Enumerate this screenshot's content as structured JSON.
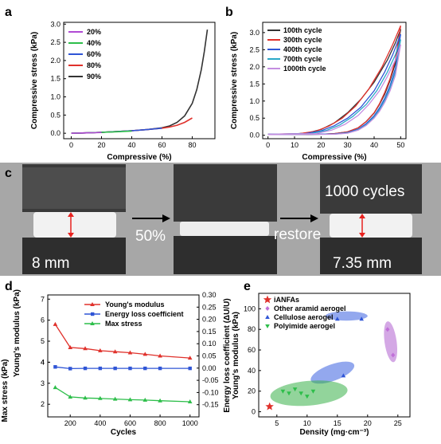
{
  "panel_labels": {
    "a": "a",
    "b": "b",
    "c": "c",
    "d": "d",
    "e": "e"
  },
  "colors": {
    "purple": "#b04bd4",
    "green": "#2dbe4a",
    "blue": "#2f55d6",
    "red": "#e0312b",
    "black": "#333333",
    "cyan": "#2aa8c8",
    "photo_bg": "#a9a9a9",
    "arrow_red": "#e8221f"
  },
  "chart_data": [
    {
      "id": "a",
      "type": "line",
      "xlabel": "Compressive (%)",
      "ylabel": "Compressive stress (kPa)",
      "xlim": [
        -5,
        95
      ],
      "ylim": [
        -0.15,
        3.05
      ],
      "xticks": [
        0,
        20,
        40,
        60,
        80
      ],
      "yticks": [
        0.0,
        0.5,
        1.0,
        1.5,
        2.0,
        2.5,
        3.0
      ],
      "legend_position": "top-left",
      "series": [
        {
          "name": "20%",
          "color": "#b04bd4",
          "x": [
            0,
            5,
            10,
            15,
            20
          ],
          "y": [
            0,
            0.005,
            0.01,
            0.015,
            0.02
          ]
        },
        {
          "name": "40%",
          "color": "#2dbe4a",
          "x": [
            0,
            10,
            20,
            30,
            40
          ],
          "y": [
            0,
            0.01,
            0.025,
            0.04,
            0.06
          ]
        },
        {
          "name": "60%",
          "color": "#2f55d6",
          "x": [
            0,
            10,
            20,
            30,
            40,
            50,
            60
          ],
          "y": [
            0,
            0.01,
            0.025,
            0.045,
            0.07,
            0.1,
            0.14
          ]
        },
        {
          "name": "80%",
          "color": "#e0312b",
          "x": [
            0,
            10,
            20,
            30,
            40,
            50,
            60,
            65,
            70,
            75,
            80
          ],
          "y": [
            0,
            0.01,
            0.025,
            0.045,
            0.07,
            0.1,
            0.14,
            0.17,
            0.22,
            0.3,
            0.42
          ]
        },
        {
          "name": "90%",
          "color": "#333333",
          "x": [
            0,
            10,
            20,
            30,
            40,
            50,
            60,
            65,
            70,
            75,
            80,
            83,
            86,
            88,
            90
          ],
          "y": [
            0,
            0.01,
            0.025,
            0.045,
            0.07,
            0.1,
            0.15,
            0.2,
            0.3,
            0.48,
            0.82,
            1.2,
            1.75,
            2.25,
            2.85
          ]
        }
      ]
    },
    {
      "id": "b",
      "type": "line",
      "xlabel": "Compressive (%)",
      "ylabel": "Compressive stress (kPa)",
      "xlim": [
        -2,
        52
      ],
      "ylim": [
        -0.1,
        3.3
      ],
      "xticks": [
        0,
        10,
        20,
        30,
        40,
        50
      ],
      "yticks": [
        0.0,
        0.5,
        1.0,
        1.5,
        2.0,
        2.5,
        3.0
      ],
      "legend_position": "top-left",
      "series": [
        {
          "name": "100th cycle",
          "color": "#333333",
          "load": {
            "x": [
              0,
              10,
              15,
              20,
              25,
              30,
              35,
              40,
              45,
              48,
              50
            ],
            "y": [
              0.03,
              0.04,
              0.07,
              0.17,
              0.36,
              0.66,
              1.05,
              1.55,
              2.2,
              2.7,
              3.1
            ]
          },
          "unload": {
            "x": [
              50,
              48,
              46,
              44,
              42,
              40,
              37,
              34,
              30,
              25,
              20,
              15,
              0
            ],
            "y": [
              3.1,
              2.1,
              1.6,
              1.2,
              0.9,
              0.65,
              0.4,
              0.22,
              0.1,
              0.05,
              0.03,
              0.02,
              0.02
            ]
          }
        },
        {
          "name": "300th cycle",
          "color": "#e0312b",
          "load": {
            "x": [
              0,
              12,
              18,
              23,
              28,
              33,
              38,
              43,
              47,
              50
            ],
            "y": [
              0.03,
              0.05,
              0.12,
              0.27,
              0.5,
              0.85,
              1.35,
              2.0,
              2.65,
              3.2
            ]
          },
          "unload": {
            "x": [
              50,
              48,
              46,
              44,
              42,
              40,
              37,
              34,
              30,
              25,
              20,
              0
            ],
            "y": [
              3.2,
              2.2,
              1.65,
              1.25,
              0.92,
              0.66,
              0.4,
              0.22,
              0.1,
              0.05,
              0.03,
              0.02
            ]
          }
        },
        {
          "name": "400th cycle",
          "color": "#2f55d6",
          "load": {
            "x": [
              0,
              14,
              20,
              25,
              30,
              35,
              40,
              44,
              47,
              50
            ],
            "y": [
              0.03,
              0.05,
              0.13,
              0.28,
              0.5,
              0.82,
              1.3,
              1.85,
              2.35,
              2.95
            ]
          },
          "unload": {
            "x": [
              50,
              48,
              46,
              44,
              42,
              40,
              37,
              34,
              30,
              25,
              0
            ],
            "y": [
              2.95,
              1.95,
              1.45,
              1.08,
              0.8,
              0.57,
              0.34,
              0.18,
              0.08,
              0.04,
              0.02
            ]
          }
        },
        {
          "name": "700th cycle",
          "color": "#2aa8c8",
          "load": {
            "x": [
              0,
              16,
              22,
              27,
              32,
              37,
              41,
              45,
              48,
              50
            ],
            "y": [
              0.03,
              0.05,
              0.14,
              0.3,
              0.55,
              0.9,
              1.3,
              1.85,
              2.35,
              2.8
            ]
          },
          "unload": {
            "x": [
              50,
              48,
              46,
              44,
              42,
              40,
              37,
              34,
              30,
              25,
              0
            ],
            "y": [
              2.8,
              1.85,
              1.38,
              1.02,
              0.75,
              0.53,
              0.31,
              0.16,
              0.07,
              0.03,
              0.02
            ]
          }
        },
        {
          "name": "1000th cycle",
          "color": "#c48de0",
          "load": {
            "x": [
              0,
              18,
              24,
              29,
              34,
              38,
              42,
              45,
              48,
              50
            ],
            "y": [
              0.03,
              0.05,
              0.15,
              0.32,
              0.58,
              0.9,
              1.3,
              1.72,
              2.2,
              2.65
            ]
          },
          "unload": {
            "x": [
              50,
              48,
              46,
              44,
              42,
              40,
              37,
              34,
              30,
              25,
              0
            ],
            "y": [
              2.65,
              1.75,
              1.3,
              0.96,
              0.7,
              0.5,
              0.29,
              0.15,
              0.06,
              0.03,
              0.02
            ]
          }
        }
      ]
    },
    {
      "id": "d",
      "type": "line",
      "xlabel": "Cycles",
      "ylabel_left_top": "Young's modulus (kPa)",
      "ylabel_left_bottom": "Max stress (kPa)",
      "ylabel_right": "Energy loss coefficient (ΔU/U)",
      "xlim": [
        50,
        1060
      ],
      "ylim_left": [
        1.4,
        7.2
      ],
      "ylim_right": [
        -0.2,
        0.3
      ],
      "xticks": [
        200,
        400,
        600,
        800,
        1000
      ],
      "yticks_left_top": [
        4,
        5,
        6,
        7
      ],
      "yticks_left_bottom": [
        2,
        3,
        4
      ],
      "yticks_right": [
        -0.15,
        -0.1,
        -0.05,
        0.0,
        0.05,
        0.1,
        0.15,
        0.2,
        0.25,
        0.3
      ],
      "legend_position": "top-center",
      "series": [
        {
          "name": "Young's modulus",
          "axis": "left",
          "color": "#e0312b",
          "marker": "triangle",
          "x": [
            100,
            200,
            300,
            400,
            500,
            600,
            700,
            800,
            1000
          ],
          "y": [
            5.8,
            4.7,
            4.65,
            4.55,
            4.5,
            4.45,
            4.38,
            4.3,
            4.2
          ]
        },
        {
          "name": "Energy loss coefficient",
          "axis": "right",
          "color": "#2f55d6",
          "marker": "square",
          "x": [
            100,
            200,
            300,
            400,
            500,
            600,
            700,
            800,
            1000
          ],
          "y": [
            0.005,
            -0.002,
            -0.001,
            -0.001,
            -0.001,
            -0.001,
            -0.001,
            -0.001,
            -0.001
          ]
        },
        {
          "name": "Max stress",
          "axis": "left",
          "color": "#2dbe4a",
          "marker": "triangle",
          "x": [
            100,
            200,
            300,
            400,
            500,
            600,
            700,
            800,
            1000
          ],
          "y": [
            2.8,
            2.35,
            2.3,
            2.28,
            2.25,
            2.22,
            2.2,
            2.17,
            2.12
          ]
        }
      ]
    },
    {
      "id": "e",
      "type": "scatter",
      "xlabel": "Density (mg·cm⁻³)",
      "ylabel": "Young's modulus (kPa)",
      "xlim": [
        2,
        27
      ],
      "ylim": [
        -5,
        115
      ],
      "xticks": [
        5,
        10,
        15,
        20,
        25
      ],
      "yticks": [
        0,
        20,
        40,
        60,
        80,
        100
      ],
      "legend_position": "top-left",
      "series": [
        {
          "name": "iANFAs",
          "color": "#e0312b",
          "marker": "star",
          "x": [
            3.8
          ],
          "y": [
            5
          ]
        },
        {
          "name": "Other aramid aerogel",
          "color": "#c070d8",
          "marker": "diamond",
          "x": [
            23.3,
            24.2
          ],
          "y": [
            80,
            55
          ]
        },
        {
          "name": "Cellulose aerogel",
          "color": "#2f55d6",
          "marker": "triangle",
          "x": [
            15,
            16,
            19
          ],
          "y": [
            90,
            35,
            90
          ]
        },
        {
          "name": "Polyimide aerogel",
          "color": "#2dbe4a",
          "marker": "triangle-down",
          "x": [
            6,
            7,
            8,
            9,
            10,
            11
          ],
          "y": [
            20,
            18,
            22,
            18,
            15,
            20
          ]
        }
      ],
      "regions": [
        {
          "series": "Other aramid aerogel",
          "color": "#b060d0",
          "cx": 23.8,
          "cy": 68,
          "rx": 1.0,
          "ry": 20,
          "rot": -8
        },
        {
          "series": "Cellulose aerogel",
          "color": "#3a60e0",
          "cx": 16.5,
          "cy": 93,
          "rx": 3.5,
          "ry": 4.5,
          "rot": 0
        },
        {
          "series": "Cellulose aerogel",
          "color": "#3a60e0",
          "cx": 14.2,
          "cy": 38,
          "rx": 3.8,
          "ry": 8,
          "rot": -20
        },
        {
          "series": "Polyimide aerogel",
          "color": "#38b048",
          "cx": 10.3,
          "cy": 18,
          "rx": 6.4,
          "ry": 12,
          "rot": -5
        }
      ]
    }
  ],
  "photo_panel": {
    "label_left": "8 mm",
    "label_middle": "50%",
    "label_right_top": "1000 cycles",
    "label_restore": "restore",
    "label_right": "7.35 mm"
  }
}
